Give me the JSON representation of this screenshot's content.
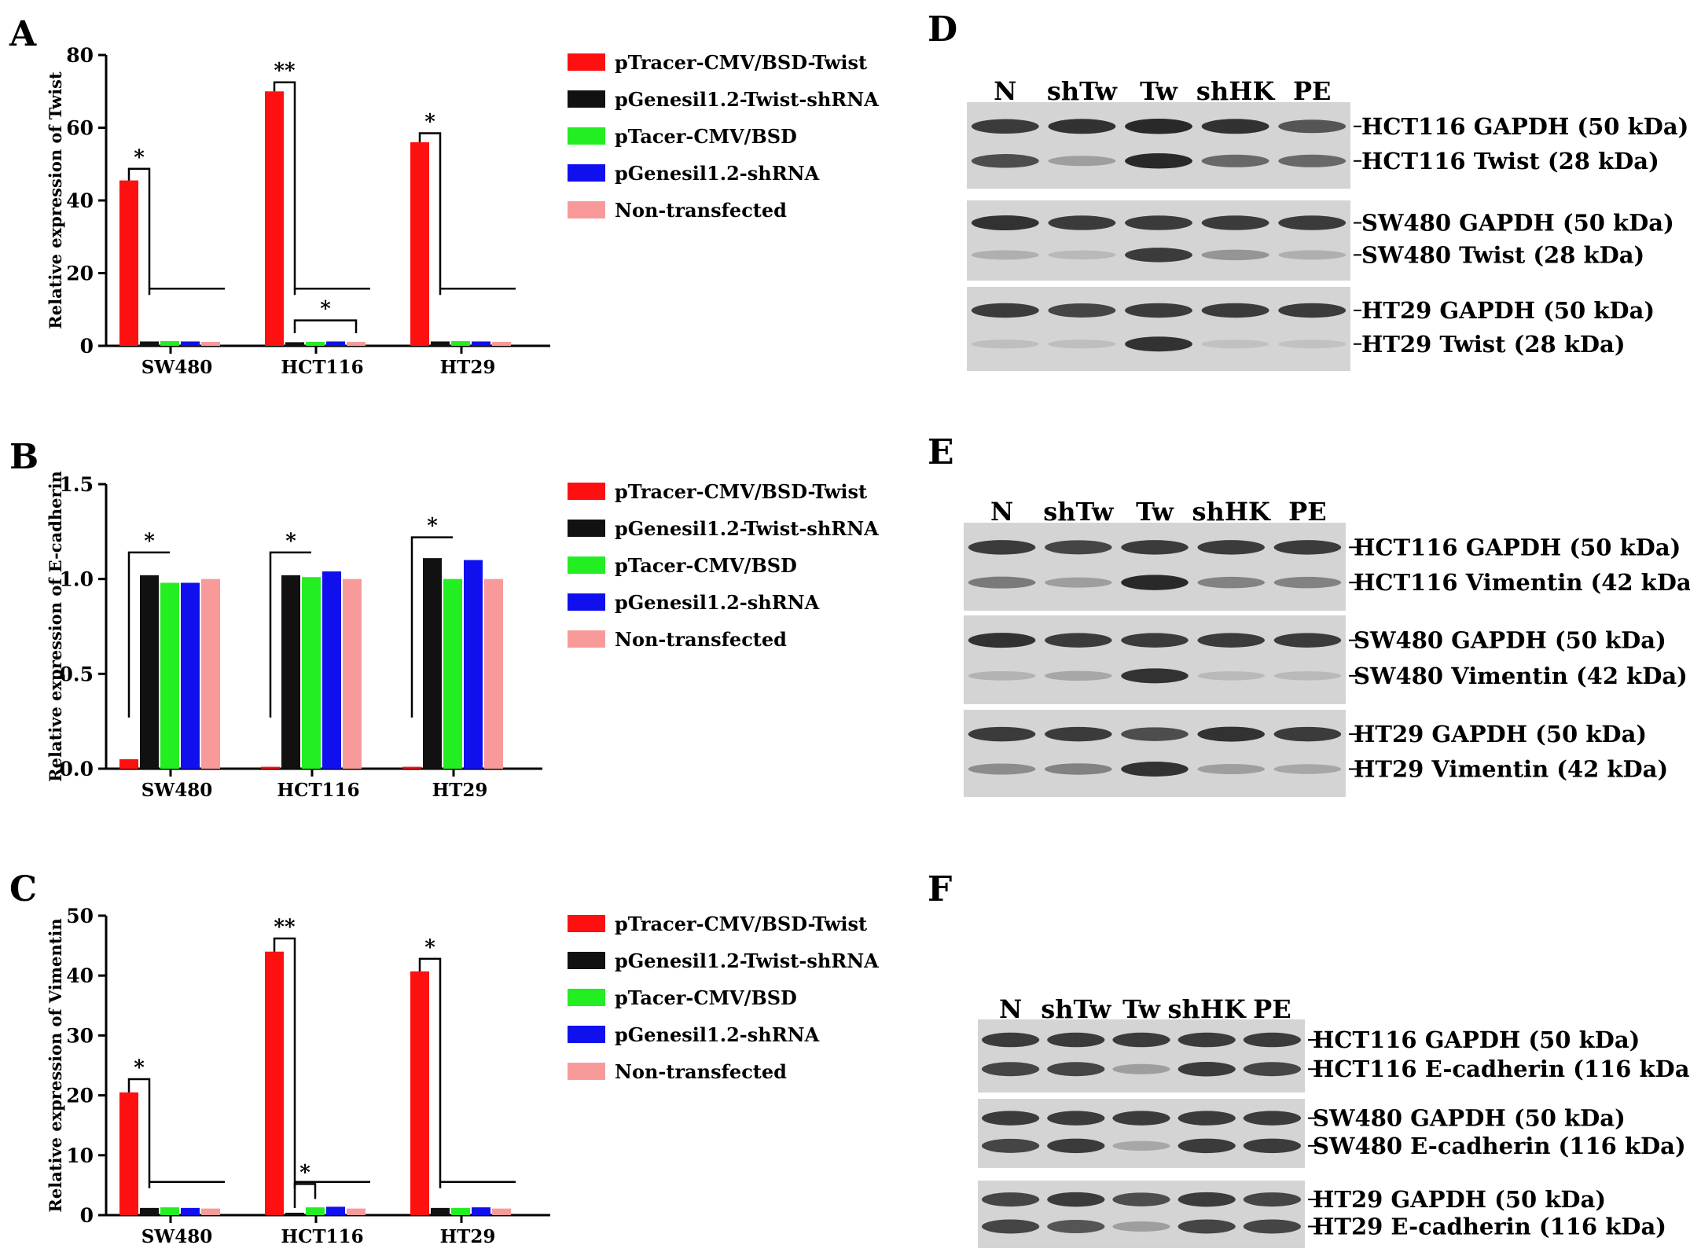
{
  "colors": {
    "red": "#ff1010",
    "black": "#111111",
    "green": "#22ee22",
    "blue": "#1010ee",
    "pink": "#f99a9a",
    "blot_bg": "#d4d4d4",
    "band": "#202020"
  },
  "legend": [
    {
      "label": "pTracer-CMV/BSD-Twist",
      "color": "#ff1010"
    },
    {
      "label": "pGenesil1.2-Twist-shRNA",
      "color": "#111111"
    },
    {
      "label": "pTacer-CMV/BSD",
      "color": "#22ee22"
    },
    {
      "label": "pGenesil1.2-shRNA",
      "color": "#1010ee"
    },
    {
      "label": "Non-transfected",
      "color": "#f99a9a"
    }
  ],
  "chart_data": [
    {
      "panel": "A",
      "type": "bar",
      "ylabel": "Relative expression of Twist",
      "categories": [
        "SW480",
        "HCT116",
        "HT29"
      ],
      "ylim": [
        0,
        80
      ],
      "yticks": [
        "0",
        "20",
        "40",
        "60",
        "80"
      ],
      "ytick_values": [
        0,
        20,
        40,
        60,
        80
      ],
      "series": [
        {
          "name": "pTracer-CMV/BSD-Twist",
          "values": [
            45.5,
            70,
            56
          ]
        },
        {
          "name": "pGenesil1.2-Twist-shRNA",
          "values": [
            1.2,
            1,
            1.2
          ]
        },
        {
          "name": "pTacer-CMV/BSD",
          "values": [
            1.3,
            1.1,
            1.3
          ]
        },
        {
          "name": "pGenesil1.2-shRNA",
          "values": [
            1.2,
            1.2,
            1.2
          ]
        },
        {
          "name": "Non-transfected",
          "values": [
            1.1,
            1.1,
            1.1
          ]
        }
      ],
      "annotations": [
        "*",
        "**",
        "*",
        "*"
      ]
    },
    {
      "panel": "B",
      "type": "bar",
      "ylabel": "Relative expression of E-cadherin",
      "categories": [
        "SW480",
        "HCT116",
        "HT29"
      ],
      "ylim": [
        0,
        1.5
      ],
      "yticks": [
        "0.0",
        "0.5",
        "1.0",
        "1.5"
      ],
      "ytick_values": [
        0,
        0.5,
        1.0,
        1.5
      ],
      "series": [
        {
          "name": "pTracer-CMV/BSD-Twist",
          "values": [
            0.05,
            0.01,
            0.01
          ]
        },
        {
          "name": "pGenesil1.2-Twist-shRNA",
          "values": [
            1.02,
            1.02,
            1.11
          ]
        },
        {
          "name": "pTacer-CMV/BSD",
          "values": [
            0.98,
            1.01,
            1.0
          ]
        },
        {
          "name": "pGenesil1.2-shRNA",
          "values": [
            0.98,
            1.04,
            1.1
          ]
        },
        {
          "name": "Non-transfected",
          "values": [
            1.0,
            1.0,
            1.0
          ]
        }
      ],
      "annotations": [
        "*",
        "*",
        "*"
      ]
    },
    {
      "panel": "C",
      "type": "bar",
      "ylabel": "Relative expression of Vimentin",
      "categories": [
        "SW480",
        "HCT116",
        "HT29"
      ],
      "ylim": [
        0,
        50
      ],
      "yticks": [
        "0",
        "10",
        "20",
        "30",
        "40",
        "50"
      ],
      "ytick_values": [
        0,
        10,
        20,
        30,
        40,
        50
      ],
      "series": [
        {
          "name": "pTracer-CMV/BSD-Twist",
          "values": [
            20.5,
            44,
            40.7
          ]
        },
        {
          "name": "pGenesil1.2-Twist-shRNA",
          "values": [
            1.2,
            0.4,
            1.2
          ]
        },
        {
          "name": "pTacer-CMV/BSD",
          "values": [
            1.3,
            1.3,
            1.2
          ]
        },
        {
          "name": "pGenesil1.2-shRNA",
          "values": [
            1.2,
            1.4,
            1.3
          ]
        },
        {
          "name": "Non-transfected",
          "values": [
            1.1,
            1.1,
            1.1
          ]
        }
      ],
      "annotations": [
        "*",
        "**",
        "*",
        "*"
      ]
    }
  ],
  "blots": [
    {
      "panel": "D",
      "lanes": [
        "N",
        "shTw",
        "Tw",
        "shHK",
        "PE"
      ],
      "groups": [
        {
          "rows": [
            {
              "label": "HCT116 GAPDH  (50 kDa)",
              "intensity": [
                0.85,
                0.9,
                0.95,
                0.9,
                0.7
              ]
            },
            {
              "label": "HCT116 Twist (28 kDa)",
              "intensity": [
                0.75,
                0.3,
                0.95,
                0.6,
                0.6
              ]
            }
          ]
        },
        {
          "rows": [
            {
              "label": "SW480 GAPDH (50 kDa)",
              "intensity": [
                0.9,
                0.85,
                0.85,
                0.85,
                0.85
              ]
            },
            {
              "label": "SW480 Twist (28 kDa)",
              "intensity": [
                0.2,
                0.15,
                0.85,
                0.35,
                0.2
              ]
            }
          ]
        },
        {
          "rows": [
            {
              "label": "HT29 GAPDH (50 kDa)",
              "intensity": [
                0.85,
                0.8,
                0.85,
                0.85,
                0.85
              ]
            },
            {
              "label": "HT29 Twist (28 kDa)",
              "intensity": [
                0.12,
                0.12,
                0.9,
                0.1,
                0.1
              ]
            }
          ]
        }
      ]
    },
    {
      "panel": "E",
      "lanes": [
        "N",
        "shTw",
        "Tw",
        "shHK",
        "PE"
      ],
      "groups": [
        {
          "rows": [
            {
              "label": "HCT116 GAPDH (50 kDa)",
              "intensity": [
                0.85,
                0.8,
                0.85,
                0.85,
                0.85
              ]
            },
            {
              "label": "HCT116 Vimentin (42 kDa)",
              "intensity": [
                0.5,
                0.3,
                0.95,
                0.45,
                0.45
              ]
            }
          ]
        },
        {
          "rows": [
            {
              "label": "SW480 GAPDH (50 kDa)",
              "intensity": [
                0.9,
                0.85,
                0.85,
                0.85,
                0.85
              ]
            },
            {
              "label": "SW480 Vimentin (42 kDa)",
              "intensity": [
                0.18,
                0.25,
                0.9,
                0.15,
                0.15
              ]
            }
          ]
        },
        {
          "rows": [
            {
              "label": "HT29 GAPDH (50 kDa)",
              "intensity": [
                0.85,
                0.85,
                0.75,
                0.9,
                0.85
              ]
            },
            {
              "label": "HT29 Vimentin (42 kDa)",
              "intensity": [
                0.4,
                0.45,
                0.9,
                0.3,
                0.25
              ]
            }
          ]
        }
      ]
    },
    {
      "panel": "F",
      "lanes": [
        "N",
        "shTw",
        "Tw",
        "shHK",
        "PE"
      ],
      "groups": [
        {
          "rows": [
            {
              "label": "HCT116 GAPDH (50 kDa)",
              "intensity": [
                0.85,
                0.85,
                0.85,
                0.85,
                0.85
              ]
            },
            {
              "label": "HCT116 E-cadherin (116 kDa)",
              "intensity": [
                0.8,
                0.8,
                0.3,
                0.85,
                0.8
              ]
            }
          ]
        },
        {
          "rows": [
            {
              "label": "SW480 GAPDH (50 kDa)",
              "intensity": [
                0.85,
                0.85,
                0.85,
                0.85,
                0.85
              ]
            },
            {
              "label": "SW480 E-cadherin (116 kDa)",
              "intensity": [
                0.8,
                0.85,
                0.25,
                0.85,
                0.85
              ]
            }
          ]
        },
        {
          "rows": [
            {
              "label": "HT29 GAPDH (50 kDa)",
              "intensity": [
                0.8,
                0.85,
                0.75,
                0.85,
                0.8
              ]
            },
            {
              "label": "HT29 E-cadherin (116 kDa)",
              "intensity": [
                0.8,
                0.7,
                0.3,
                0.8,
                0.8
              ]
            }
          ]
        }
      ]
    }
  ]
}
